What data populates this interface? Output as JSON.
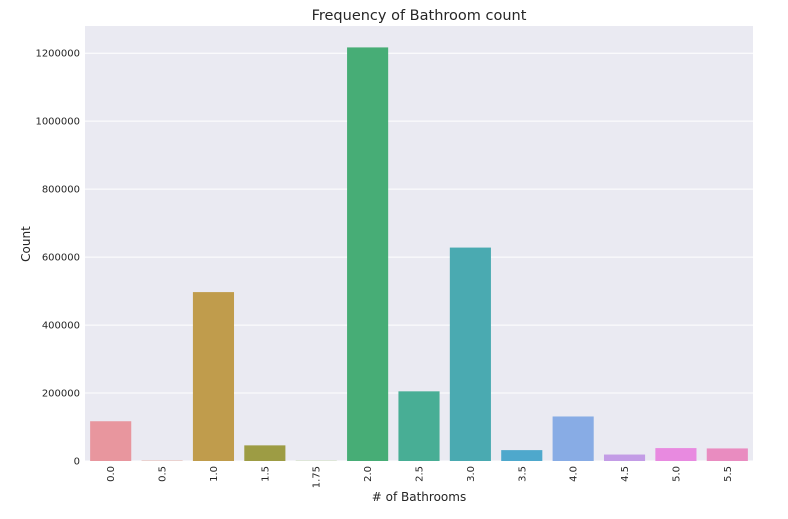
{
  "chart_data": {
    "type": "bar",
    "title": "Frequency of Bathroom count",
    "xlabel": "# of Bathrooms",
    "ylabel": "Count",
    "categories": [
      "0.0",
      "0.5",
      "1.0",
      "1.5",
      "1.75",
      "2.0",
      "2.5",
      "3.0",
      "3.5",
      "4.0",
      "4.5",
      "5.0",
      "5.5"
    ],
    "values": [
      117000,
      1000,
      497000,
      46000,
      500,
      1217000,
      205000,
      628000,
      32000,
      131000,
      19000,
      38000,
      37000
    ],
    "colors": [
      "#e8969e",
      "#e09a8a",
      "#c09c4c",
      "#9d9c44",
      "#7aa642",
      "#47ad76",
      "#48ae95",
      "#4aaab1",
      "#4ea8cc",
      "#88ace5",
      "#c39ce6",
      "#e88ae0",
      "#e98cc0"
    ],
    "ylim": [
      0,
      1280000
    ],
    "yticks": [
      0,
      200000,
      400000,
      600000,
      800000,
      1000000,
      1200000
    ],
    "ytick_labels": [
      "0",
      "200000",
      "400000",
      "600000",
      "800000",
      "1000000",
      "1200000"
    ],
    "grid": true,
    "background": "#eaeaf2",
    "legend": "none"
  }
}
